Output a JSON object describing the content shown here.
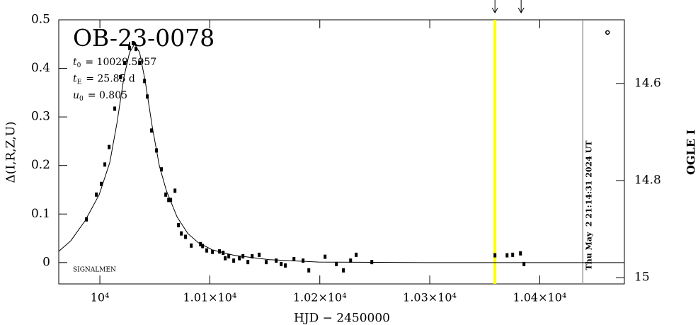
{
  "chart_data": {
    "type": "scatter",
    "title": "OB-23-0078",
    "params": [
      {
        "symbol": "t",
        "sub": "0",
        "text": "= 10029.5957"
      },
      {
        "symbol": "t",
        "sub": "E",
        "text": "= 25.85 d"
      },
      {
        "symbol": "u",
        "sub": "0",
        "text": "= 0.805"
      }
    ],
    "corner_note": "SIGNALMEN",
    "timestamp": "Thu May  2 21:14:31 2024 UT",
    "x_label": "HJD − 2450000",
    "y_label": "Δ(I,R,Z,U)",
    "y2_label": "OGLE I",
    "xlim": [
      9962.6,
      10477
    ],
    "ylim": [
      -0.044,
      0.5
    ],
    "y2lim": [
      15.013,
      14.469
    ],
    "xticks": [
      {
        "value": 10000,
        "label": "10⁴"
      },
      {
        "value": 10100,
        "label": "1.01×10⁴"
      },
      {
        "value": 10200,
        "label": "1.02×10⁴"
      },
      {
        "value": 10300,
        "label": "1.03×10⁴"
      },
      {
        "value": 10400,
        "label": "1.04×10⁴"
      }
    ],
    "yticks": [
      0,
      0.1,
      0.2,
      0.3,
      0.4,
      0.5
    ],
    "y2ticks": [
      14.6,
      14.8,
      15
    ],
    "series": [
      {
        "color": "#000000",
        "x": [
          9987.8,
          9996.8,
          10001.3,
          10004.5,
          10008.4,
          10013.5,
          10018.7,
          10022.5,
          10027.0,
          10030.3,
          10032.8,
          10036.1,
          10040.6,
          10043.1,
          10047.0,
          10051.5,
          10056.0,
          10059.9,
          10062.5,
          10064.4,
          10068.3,
          10071.5,
          10074.1,
          10077.9,
          10083.1,
          10091.5,
          10093.4,
          10097.2,
          10102.4,
          10108.8,
          10112.1,
          10114.0,
          10117.2,
          10121.7,
          10126.9,
          10130.1,
          10134.6,
          10138.5,
          10144.9,
          10151.3,
          10160.4,
          10164.9,
          10168.7,
          10176.5,
          10184.8,
          10190.0,
          10204.8,
          10215.1,
          10221.5,
          10228.0,
          10233.1,
          10247.3,
          10359.3,
          10370.3,
          10375.4,
          10382.5,
          10385.7
        ],
        "values": [
          0.089,
          0.14,
          0.162,
          0.202,
          0.238,
          0.317,
          0.382,
          0.411,
          0.442,
          0.452,
          0.44,
          0.411,
          0.374,
          0.342,
          0.272,
          0.231,
          0.192,
          0.14,
          0.129,
          0.129,
          0.148,
          0.077,
          0.06,
          0.053,
          0.035,
          0.038,
          0.034,
          0.025,
          0.022,
          0.023,
          0.02,
          0.009,
          0.013,
          0.004,
          0.009,
          0.013,
          0.001,
          0.013,
          0.016,
          0.001,
          0.004,
          -0.003,
          -0.006,
          0.007,
          0.004,
          -0.016,
          0.012,
          -0.003,
          -0.016,
          0.004,
          0.016,
          0.001,
          0.015,
          0.015,
          0.016,
          0.019,
          -0.003
        ]
      },
      {
        "color": "#000000",
        "open": true,
        "x": [
          10461.7
        ],
        "values": [
          0.474
        ]
      }
    ],
    "model": {
      "color": "#000000",
      "x": [
        9962.6,
        9973.6,
        9986.5,
        9999.4,
        10009.0,
        10015.5,
        10021.9,
        10027.0,
        10031.6,
        10036.1,
        10041.2,
        10047.7,
        10054.1,
        10060.5,
        10070.2,
        10079.9,
        10089.5,
        10102.4,
        10121.7,
        10153.9,
        10199.0,
        10295.6,
        10477
      ],
      "values": [
        0.023,
        0.045,
        0.086,
        0.14,
        0.206,
        0.287,
        0.382,
        0.433,
        0.45,
        0.433,
        0.374,
        0.279,
        0.199,
        0.148,
        0.094,
        0.06,
        0.041,
        0.026,
        0.015,
        0.006,
        0.001,
        0,
        0
      ]
    },
    "vlines": [
      {
        "x": 10359.3,
        "color": "#ffff00"
      },
      {
        "x": 10439.2,
        "color": "#999999"
      }
    ],
    "arrows_x": [
      10359.3,
      10383.1
    ]
  }
}
